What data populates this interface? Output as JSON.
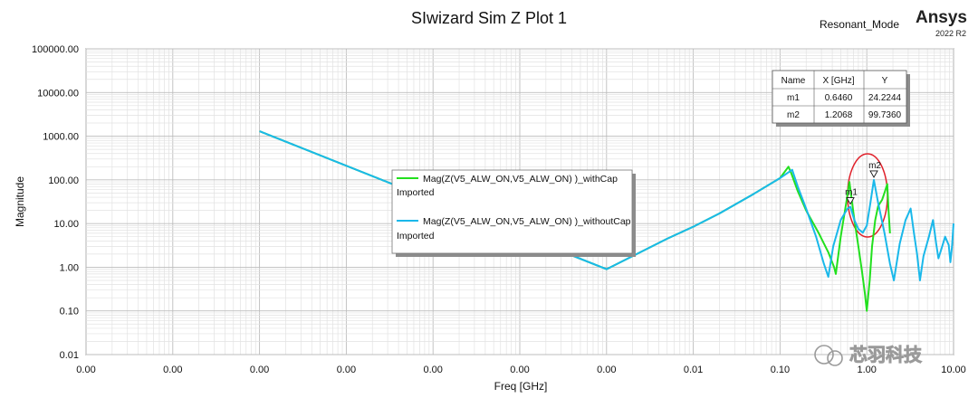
{
  "chart_data": {
    "type": "line",
    "title": "SIwizard Sim Z Plot 1",
    "brand": "Ansys",
    "brand_version": "2022 R2",
    "mode_label": "Resonant_Mode",
    "xlabel": "Freq [GHz]",
    "ylabel": "Magnitude",
    "y_scale": "log",
    "ylim": [
      0.01,
      100000
    ],
    "y_ticks": [
      "100000.00",
      "10000.00",
      "1000.00",
      "100.00",
      "10.00",
      "1.00",
      "0.10",
      "0.01"
    ],
    "x_scale": "log",
    "x_ticks": [
      "0.00",
      "0.00",
      "0.00",
      "0.00",
      "0.00",
      "0.00",
      "0.00",
      "0.01",
      "0.10",
      "1.00",
      "10.00"
    ],
    "grid": true,
    "legend_position": "center",
    "series": [
      {
        "name": "Mag(Z(V5_ALW_ON,V5_ALW_ON) )_withCap",
        "source": "Imported",
        "color": "#22e01e",
        "points": [
          [
            1e-07,
            1300
          ],
          [
            0.001,
            0.9
          ],
          [
            0.002,
            1.8
          ],
          [
            0.005,
            4.5
          ],
          [
            0.01,
            8.5
          ],
          [
            0.02,
            17
          ],
          [
            0.05,
            48
          ],
          [
            0.1,
            110
          ],
          [
            0.125,
            200
          ],
          [
            0.135,
            140
          ],
          [
            0.16,
            55
          ],
          [
            0.2,
            20
          ],
          [
            0.28,
            6
          ],
          [
            0.36,
            2.2
          ],
          [
            0.42,
            1.0
          ],
          [
            0.44,
            0.7
          ],
          [
            0.5,
            5
          ],
          [
            0.58,
            30
          ],
          [
            0.63,
            90
          ],
          [
            0.66,
            45
          ],
          [
            0.72,
            12
          ],
          [
            0.8,
            3
          ],
          [
            0.88,
            0.8
          ],
          [
            0.95,
            0.25
          ],
          [
            1.0,
            0.1
          ],
          [
            1.08,
            0.5
          ],
          [
            1.15,
            3
          ],
          [
            1.25,
            12
          ],
          [
            1.35,
            25
          ],
          [
            1.5,
            35
          ],
          [
            1.62,
            55
          ],
          [
            1.72,
            80
          ],
          [
            1.78,
            20
          ],
          [
            1.85,
            6
          ]
        ]
      },
      {
        "name": "Mag(Z(V5_ALW_ON,V5_ALW_ON) )_withoutCap",
        "source": "Imported",
        "color": "#1ab8ea",
        "points": [
          [
            1e-07,
            1300
          ],
          [
            0.001,
            0.9
          ],
          [
            0.002,
            1.8
          ],
          [
            0.005,
            4.5
          ],
          [
            0.01,
            8.5
          ],
          [
            0.02,
            17
          ],
          [
            0.05,
            48
          ],
          [
            0.1,
            110
          ],
          [
            0.138,
            170
          ],
          [
            0.16,
            70
          ],
          [
            0.2,
            22
          ],
          [
            0.26,
            5
          ],
          [
            0.32,
            1.2
          ],
          [
            0.36,
            0.6
          ],
          [
            0.41,
            3
          ],
          [
            0.5,
            12
          ],
          [
            0.6,
            22
          ],
          [
            0.646,
            24.2244
          ],
          [
            0.72,
            12
          ],
          [
            0.8,
            7.5
          ],
          [
            0.9,
            6.2
          ],
          [
            1.0,
            9
          ],
          [
            1.1,
            30
          ],
          [
            1.2068,
            99.736
          ],
          [
            1.35,
            30
          ],
          [
            1.6,
            6
          ],
          [
            1.85,
            1.2
          ],
          [
            2.05,
            0.5
          ],
          [
            2.4,
            3.5
          ],
          [
            2.8,
            12
          ],
          [
            3.2,
            22
          ],
          [
            3.5,
            6
          ],
          [
            3.8,
            2
          ],
          [
            4.1,
            0.5
          ],
          [
            4.5,
            1.8
          ],
          [
            5.2,
            5
          ],
          [
            5.8,
            12
          ],
          [
            6.3,
            3.5
          ],
          [
            6.7,
            1.6
          ],
          [
            7.2,
            2.5
          ],
          [
            8.0,
            5
          ],
          [
            8.8,
            3.2
          ],
          [
            9.2,
            1.3
          ],
          [
            9.6,
            3
          ],
          [
            10.0,
            10
          ]
        ]
      }
    ],
    "markers": [
      {
        "name": "m1",
        "x": 0.646,
        "y": 24.2244
      },
      {
        "name": "m2",
        "x": 1.2068,
        "y": 99.736
      }
    ],
    "marker_table": {
      "headers": [
        "Name",
        "X [GHz]",
        "Y"
      ],
      "rows": [
        [
          "m1",
          "0.6460",
          "24.2244"
        ],
        [
          "m2",
          "1.2068",
          "99.7360"
        ]
      ]
    },
    "highlight_color": "#e0202a"
  },
  "watermark": "芯羽科技"
}
